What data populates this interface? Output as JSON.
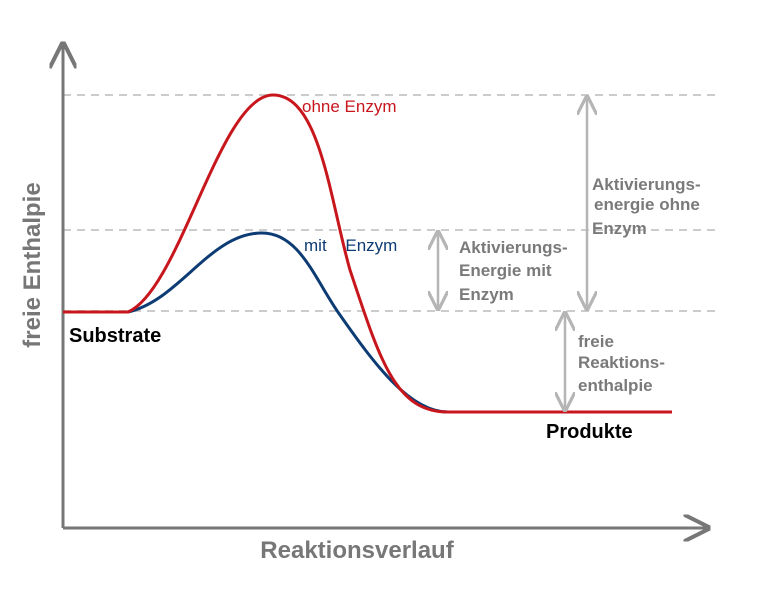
{
  "axes": {
    "y_label": "freie Enthalpie",
    "x_label": "Reaktionsverlauf"
  },
  "curves": {
    "without_enzyme": "ohne Enzym",
    "with_enzyme": "mit Enzym"
  },
  "states": {
    "start": "Substrate",
    "end": "Produkte"
  },
  "annotations": {
    "activation_without": [
      "Aktivierungs-",
      "energie ohne",
      "Enzym"
    ],
    "activation_with": [
      "Aktivierungs-",
      "Energie mit",
      "Enzym"
    ],
    "reaction_enthalpy": [
      "freie",
      "Reaktions-",
      "enthalpie"
    ]
  }
}
